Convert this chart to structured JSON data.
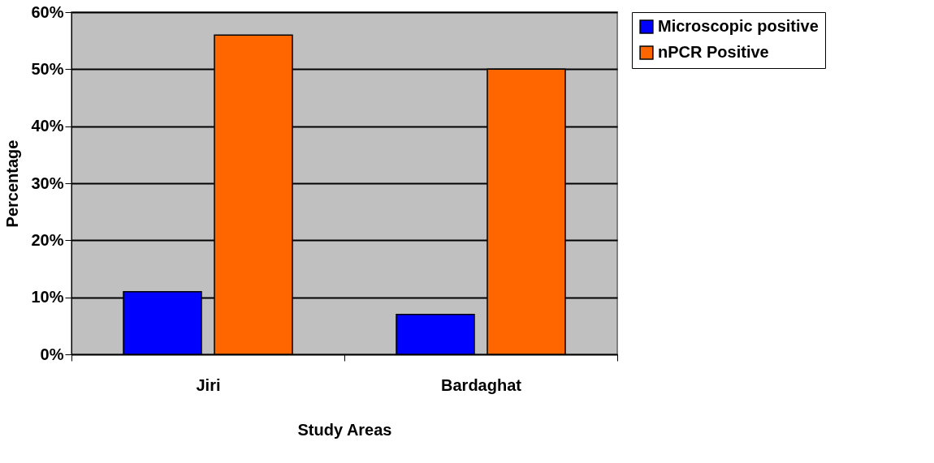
{
  "chart_data": {
    "type": "bar",
    "xlabel": "Study Areas",
    "ylabel": "Percentage",
    "categories": [
      "Jiri",
      "Bardaghat"
    ],
    "series": [
      {
        "name": "Microscopic positive",
        "color": "#0000ff",
        "values": [
          11,
          7
        ]
      },
      {
        "name": "nPCR Positive",
        "color": "#ff6600",
        "values": [
          56,
          50
        ]
      }
    ],
    "ylim": [
      0,
      60
    ],
    "yticks": [
      {
        "value": 0,
        "label": "0%"
      },
      {
        "value": 10,
        "label": "10%"
      },
      {
        "value": 20,
        "label": "20%"
      },
      {
        "value": 30,
        "label": "30%"
      },
      {
        "value": 40,
        "label": "40%"
      },
      {
        "value": 50,
        "label": "50%"
      },
      {
        "value": 60,
        "label": "60%"
      }
    ],
    "grid": "y",
    "legend": "right"
  }
}
